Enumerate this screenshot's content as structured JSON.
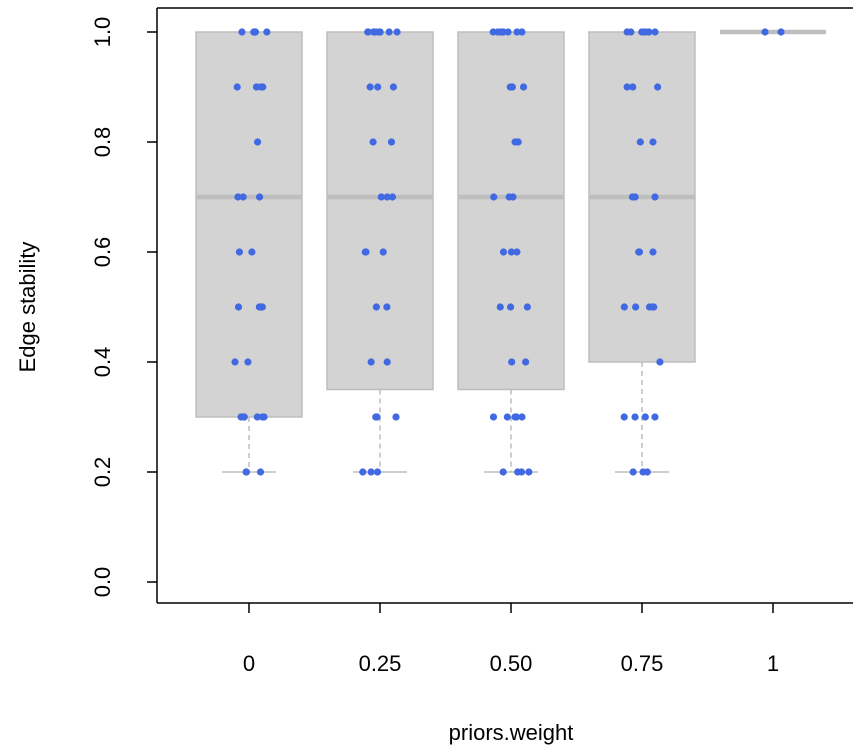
{
  "chart_data": {
    "type": "boxplot",
    "xlabel": "priors.weight",
    "ylabel": "Edge stability",
    "categories": [
      "0",
      "0.25",
      "0.50",
      "0.75",
      "1"
    ],
    "ylim": [
      0,
      1
    ],
    "yticks": [
      "0.0",
      "0.2",
      "0.4",
      "0.6",
      "0.8",
      "1.0"
    ],
    "grid": false,
    "boxes": [
      {
        "category": "0",
        "min": 0.2,
        "q1": 0.3,
        "median": 0.7,
        "q3": 1.0,
        "max": 1.0
      },
      {
        "category": "0.25",
        "min": 0.2,
        "q1": 0.35,
        "median": 0.7,
        "q3": 1.0,
        "max": 1.0
      },
      {
        "category": "0.50",
        "min": 0.2,
        "q1": 0.35,
        "median": 0.7,
        "q3": 1.0,
        "max": 1.0
      },
      {
        "category": "0.75",
        "min": 0.2,
        "q1": 0.4,
        "median": 0.7,
        "q3": 1.0,
        "max": 1.0
      },
      {
        "category": "1",
        "min": 1.0,
        "q1": 1.0,
        "median": 1.0,
        "q3": 1.0,
        "max": 1.0
      }
    ],
    "points": [
      {
        "category": "0",
        "values": [
          1.0,
          1.0,
          1.0,
          1.0,
          1.0,
          1.0,
          0.9,
          0.9,
          0.9,
          0.9,
          0.8,
          0.7,
          0.7,
          0.7,
          0.6,
          0.6,
          0.5,
          0.5,
          0.5,
          0.5,
          0.4,
          0.4,
          0.3,
          0.3,
          0.3,
          0.3,
          0.3,
          0.3,
          0.2,
          0.2,
          0.2
        ]
      },
      {
        "category": "0.25",
        "values": [
          1.0,
          1.0,
          1.0,
          1.0,
          1.0,
          1.0,
          1.0,
          1.0,
          0.9,
          0.9,
          0.9,
          0.8,
          0.8,
          0.7,
          0.7,
          0.7,
          0.6,
          0.6,
          0.6,
          0.5,
          0.5,
          0.4,
          0.4,
          0.3,
          0.3,
          0.3,
          0.3,
          0.2,
          0.2,
          0.2
        ]
      },
      {
        "category": "0.50",
        "values": [
          1.0,
          1.0,
          1.0,
          1.0,
          1.0,
          1.0,
          1.0,
          1.0,
          0.9,
          0.9,
          0.9,
          0.8,
          0.8,
          0.7,
          0.7,
          0.7,
          0.6,
          0.6,
          0.6,
          0.5,
          0.5,
          0.5,
          0.4,
          0.4,
          0.3,
          0.3,
          0.3,
          0.3,
          0.3,
          0.3,
          0.2,
          0.2,
          0.2,
          0.2
        ]
      },
      {
        "category": "0.75",
        "values": [
          1.0,
          1.0,
          1.0,
          1.0,
          1.0,
          1.0,
          1.0,
          1.0,
          0.9,
          0.9,
          0.9,
          0.8,
          0.8,
          0.7,
          0.7,
          0.7,
          0.6,
          0.6,
          0.6,
          0.5,
          0.5,
          0.5,
          0.5,
          0.5,
          0.4,
          0.3,
          0.3,
          0.3,
          0.3,
          0.2,
          0.2,
          0.2
        ]
      },
      {
        "category": "1",
        "values": [
          1.0,
          1.0
        ]
      }
    ],
    "colors": {
      "box_fill": "#d3d3d3",
      "box_border": "#bebebe",
      "median": "#bebebe",
      "whisker": "#bebebe",
      "point": "#4169e1",
      "axis": "#000000"
    }
  }
}
